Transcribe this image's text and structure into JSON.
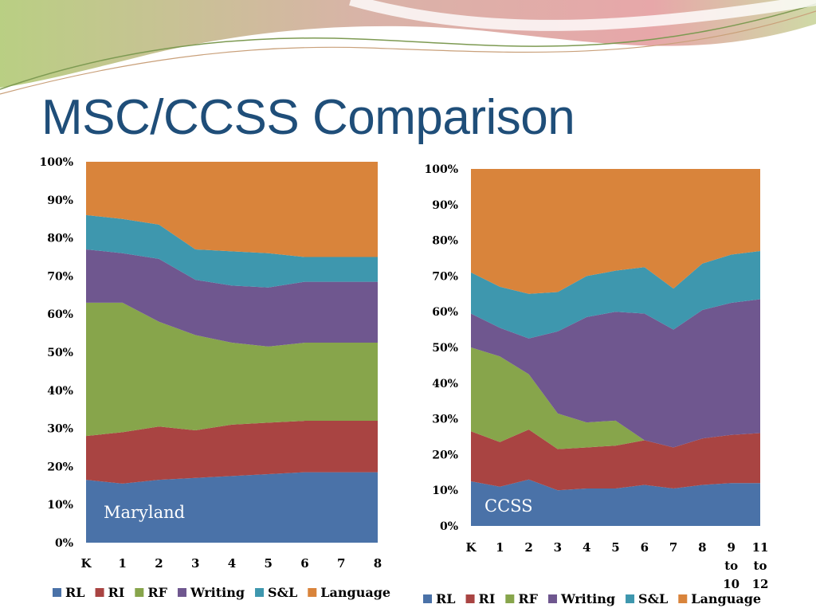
{
  "slide": {
    "title": "MSC/CCSS Comparison"
  },
  "colors": {
    "RL": "#4a72a8",
    "RI": "#a94442",
    "RF": "#87a54b",
    "Writing": "#6f578f",
    "S&L": "#3e97ae",
    "Language": "#d9843b",
    "title": "#1f4e79"
  },
  "chart_data": [
    {
      "type": "area",
      "stacked": "percent",
      "panel_label": "Maryland",
      "y_ticks": [
        "0%",
        "10%",
        "20%",
        "30%",
        "40%",
        "50%",
        "60%",
        "70%",
        "80%",
        "90%",
        "100%"
      ],
      "ylim": [
        0,
        100
      ],
      "categories": [
        "K",
        "1",
        "2",
        "3",
        "4",
        "5",
        "6",
        "7",
        "8"
      ],
      "legend_position": "bottom",
      "series": [
        {
          "name": "RL",
          "values": [
            16.5,
            15.5,
            16.5,
            17,
            17.5,
            18,
            18.5,
            18.5,
            18.5
          ]
        },
        {
          "name": "RI",
          "values": [
            11.5,
            13.5,
            14,
            12.5,
            13.5,
            13.5,
            13.5,
            13.5,
            13.5
          ]
        },
        {
          "name": "RF",
          "values": [
            35,
            34,
            27.5,
            25,
            21.5,
            20,
            20.5,
            20.5,
            20.5
          ]
        },
        {
          "name": "Writing",
          "values": [
            14,
            13,
            16.5,
            14.5,
            15,
            15.5,
            16,
            16,
            16
          ]
        },
        {
          "name": "S&L",
          "values": [
            9,
            9,
            9,
            8,
            9,
            9,
            6.5,
            6.5,
            6.5
          ]
        },
        {
          "name": "Language",
          "values": [
            14,
            15,
            16.5,
            23,
            23.5,
            24,
            25,
            25,
            25
          ]
        }
      ]
    },
    {
      "type": "area",
      "stacked": "percent",
      "panel_label": "CCSS",
      "y_ticks": [
        "0%",
        "10%",
        "20%",
        "30%",
        "40%",
        "50%",
        "60%",
        "70%",
        "80%",
        "90%",
        "100%"
      ],
      "ylim": [
        0,
        100
      ],
      "categories": [
        "K",
        "1",
        "2",
        "3",
        "4",
        "5",
        "6",
        "7",
        "8",
        "9 to 10",
        "11 to 12"
      ],
      "legend_position": "bottom",
      "series": [
        {
          "name": "RL",
          "values": [
            12.5,
            11,
            13,
            10,
            10.5,
            10.5,
            11.5,
            10.5,
            11.5,
            12,
            12
          ]
        },
        {
          "name": "RI",
          "values": [
            14,
            12.5,
            14,
            11.5,
            11.5,
            12,
            12.5,
            11.5,
            13,
            13.5,
            14
          ]
        },
        {
          "name": "RF",
          "values": [
            23.5,
            24,
            15.5,
            10,
            7,
            7,
            0,
            0,
            0,
            0,
            0
          ]
        },
        {
          "name": "Writing",
          "values": [
            9.5,
            8,
            10,
            23,
            29.5,
            30.5,
            35.5,
            33,
            36,
            37,
            37.5
          ]
        },
        {
          "name": "S&L",
          "values": [
            11.5,
            11.5,
            12.5,
            11,
            11.5,
            11.5,
            13,
            11.5,
            13,
            13.5,
            13.5
          ]
        },
        {
          "name": "Language",
          "values": [
            29,
            33,
            35,
            34.5,
            30,
            28.5,
            27.5,
            33.5,
            26.5,
            24,
            23
          ]
        }
      ]
    }
  ]
}
